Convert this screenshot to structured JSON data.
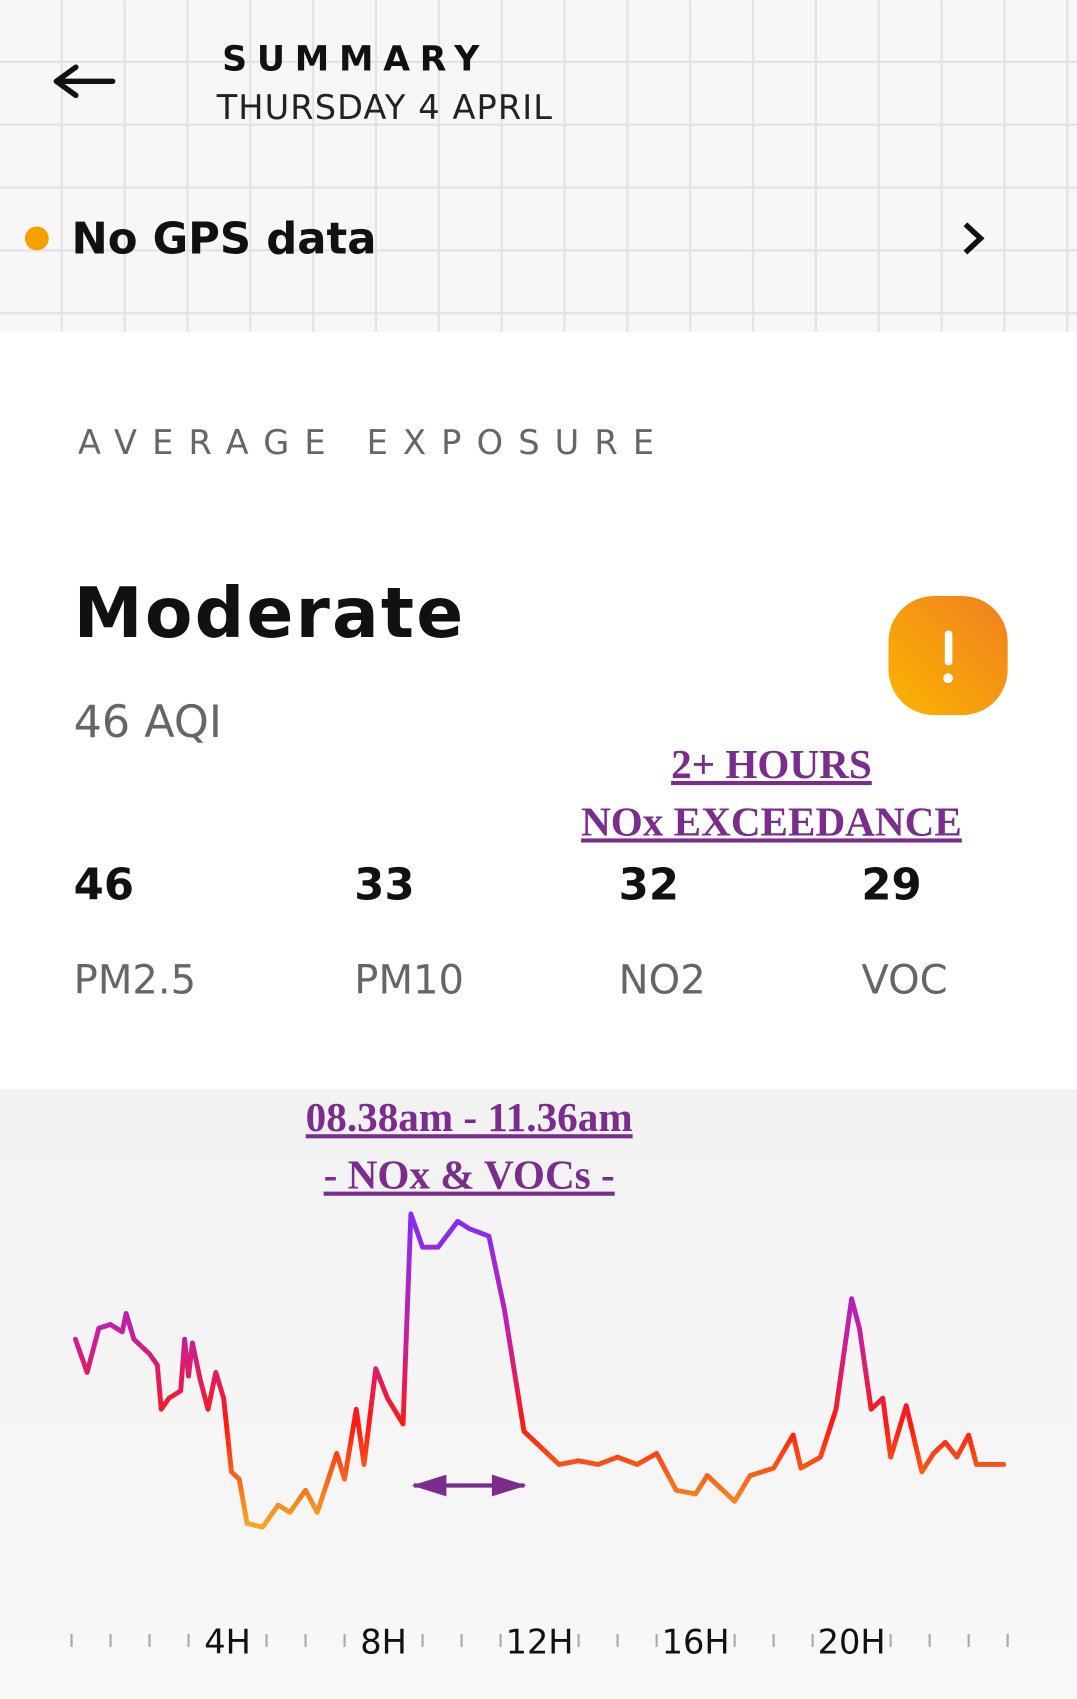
{
  "header": {
    "title": "SUMMARY",
    "date": "THURSDAY 4 APRIL"
  },
  "gps": {
    "status": "No GPS data"
  },
  "exposure": {
    "heading": "AVERAGE EXPOSURE",
    "level": "Moderate",
    "aqi": "46 AQI",
    "pollutants": [
      {
        "value": "46",
        "name": "PM2.5"
      },
      {
        "value": "33",
        "name": "PM10"
      },
      {
        "value": "32",
        "name": "NO2"
      },
      {
        "value": "29",
        "name": "VOC"
      }
    ]
  },
  "chart_data": {
    "type": "line",
    "annotations": [
      "2+ HOURS",
      "NOx EXCEEDANCE",
      "08.38am - 11.36am",
      "- NOx & VOCs -"
    ],
    "x": [
      0.1,
      0.4,
      0.7,
      1.0,
      1.3,
      1.4,
      1.6,
      2.0,
      2.2,
      2.3,
      2.5,
      2.8,
      2.9,
      3.0,
      3.1,
      3.3,
      3.5,
      3.7,
      3.9,
      4.1,
      4.3,
      4.5,
      4.9,
      5.3,
      5.6,
      6.0,
      6.3,
      6.8,
      7.0,
      7.3,
      7.5,
      7.8,
      8.1,
      8.5,
      8.7,
      9.0,
      9.4,
      9.9,
      10.2,
      10.7,
      11.1,
      11.6,
      12.0,
      12.5,
      13.0,
      13.5,
      14.0,
      14.5,
      15.0,
      15.5,
      16.0,
      16.3,
      17.0,
      17.4,
      18.0,
      18.5,
      18.7,
      19.2,
      19.6,
      20.0,
      20.2,
      20.5,
      20.8,
      21.0,
      21.4,
      21.8,
      22.1,
      22.4,
      22.7,
      23.0,
      23.2,
      23.9
    ],
    "values": [
      60,
      51,
      63,
      64,
      62,
      67,
      60,
      56,
      53,
      41,
      44,
      46,
      60,
      50,
      59,
      49,
      41,
      51,
      44,
      24,
      22,
      10,
      9,
      15,
      13,
      19,
      13,
      29,
      22,
      41,
      26,
      52,
      44,
      37,
      94,
      85,
      85,
      92,
      90,
      88,
      68,
      35,
      31,
      26,
      27,
      26,
      28,
      26,
      29,
      19,
      18,
      23,
      16,
      23,
      25,
      34,
      25,
      28,
      41,
      71,
      63,
      41,
      44,
      28,
      42,
      24,
      29,
      32,
      28,
      34,
      26,
      26
    ],
    "xlim": [
      0,
      24
    ],
    "ylim": [
      0,
      100
    ],
    "xticks": [
      {
        "value": 4,
        "label": "4H"
      },
      {
        "value": 8,
        "label": "8H"
      },
      {
        "value": 12,
        "label": "12H"
      },
      {
        "value": 16,
        "label": "16H"
      },
      {
        "value": 20,
        "label": "20H"
      }
    ],
    "minor_xticks": [
      0,
      1,
      2,
      3,
      5,
      6,
      7,
      9,
      10,
      11,
      13,
      14,
      15,
      17,
      18,
      19,
      21,
      22,
      23,
      24
    ],
    "colors": [
      "#f5a623",
      "#ff1a10",
      "#c21fa8",
      "#8a2cf0"
    ]
  }
}
